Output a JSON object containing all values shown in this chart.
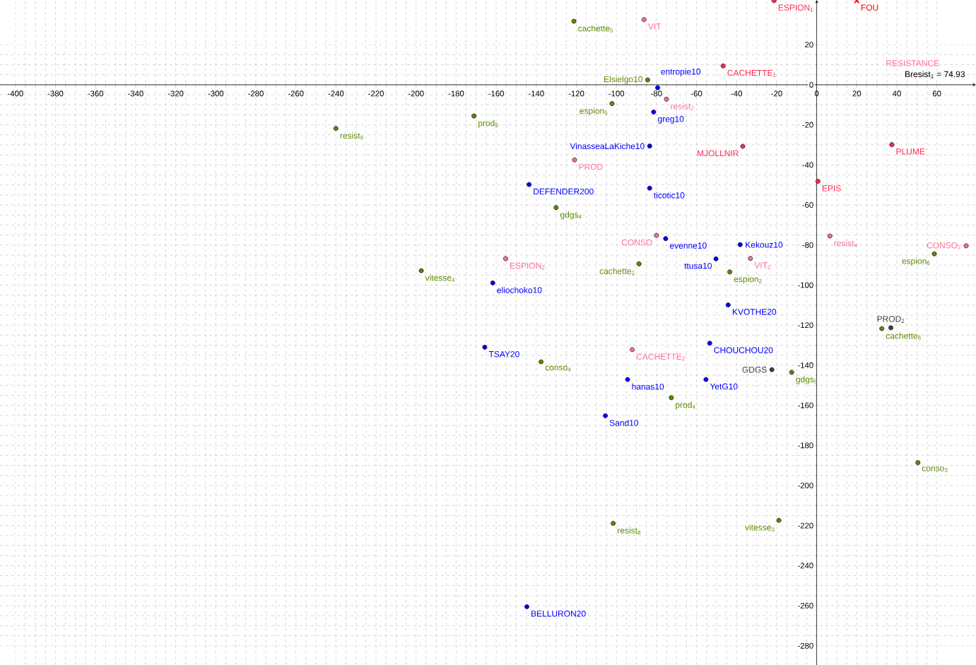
{
  "chart_data": {
    "type": "scatter",
    "marker": "circle",
    "grid": true,
    "xlim": [
      -407.7,
      79.5
    ],
    "ylim": [
      -289.6,
      42.3
    ],
    "xticks": [
      -400,
      -380,
      -360,
      -340,
      -320,
      -300,
      -280,
      -260,
      -240,
      -220,
      -200,
      -180,
      -160,
      -140,
      -120,
      -100,
      -80,
      -60,
      -40,
      -20,
      0,
      20,
      40,
      60
    ],
    "yticks": [
      -280,
      -260,
      -240,
      -220,
      -200,
      -180,
      -160,
      -140,
      -120,
      -100,
      -80,
      -60,
      -40,
      -20,
      0,
      20
    ],
    "series": [
      {
        "color": "#0000ff",
        "x": [
          -79.4,
          -81.4,
          -83.4,
          -143.6,
          -83.4,
          -75.4,
          -161.7,
          -165.7,
          -94.4,
          -105.5,
          -38.2,
          -50.3,
          -44.2,
          -53.4,
          -55.3,
          -144.7
        ],
        "values": [
          -1.5,
          -13.6,
          -30.6,
          -49.8,
          -51.6,
          -76.8,
          -98.9,
          -131.0,
          -147.1,
          -165.2,
          -79.8,
          -86.9,
          -109.9,
          -129.0,
          -147.1,
          -260.5
        ]
      },
      {
        "color": "#5c8a00",
        "x": [
          -121.2,
          -84.4,
          -102.2,
          -171.1,
          -240.0,
          -130.1,
          -88.7,
          -197.4,
          -137.6,
          -72.6,
          58.7,
          -43.4,
          32.5,
          -12.5,
          50.5,
          -101.6,
          -18.9
        ],
        "values": [
          31.7,
          2.4,
          -9.4,
          -15.6,
          -21.8,
          -61.3,
          -89.4,
          -92.8,
          -138.3,
          -156.2,
          -84.4,
          -93.4,
          -121.7,
          -143.5,
          -188.6,
          -218.9,
          -217.4
        ]
      },
      {
        "color": "#ff2a55",
        "x": [
          -21.3,
          -46.7,
          -36.9,
          37.5,
          0.6
        ],
        "values": [
          42.0,
          9.4,
          -30.7,
          -29.9,
          -48.2
        ]
      },
      {
        "color": "#ff6f91",
        "x": [
          -86.2,
          -75.0,
          -120.9,
          -80.0,
          -155.3,
          -92.1,
          6.6,
          74.6,
          -33.1
        ],
        "values": [
          32.5,
          -7.2,
          -37.5,
          -75.2,
          -86.8,
          -132.2,
          -75.5,
          -80.4,
          -86.7
        ]
      },
      {
        "color": "#404040",
        "x": [
          37.0,
          -22.4
        ],
        "values": [
          -121.3,
          -142.2
        ]
      },
      {
        "color": "#ff0000",
        "marker": "cross",
        "x": [
          20.0
        ],
        "values": [
          42.0
        ]
      }
    ],
    "annotations": [
      {
        "text": "entropie10",
        "x": -79.4,
        "y": -1.5
      },
      {
        "text": "greg10",
        "x": -81.4,
        "y": -13.6
      },
      {
        "text": "VinasseaLaKiche10",
        "x": -83.4,
        "y": -30.6
      },
      {
        "text": "DEFENDER200",
        "x": -143.6,
        "y": -49.8
      },
      {
        "text": "ticotic10",
        "x": -83.4,
        "y": -51.6
      },
      {
        "text": "evenne10",
        "x": -75.4,
        "y": -76.8
      },
      {
        "text": "eliochoko10",
        "x": -161.7,
        "y": -98.9
      },
      {
        "text": "TSAY20",
        "x": -165.7,
        "y": -131.0
      },
      {
        "text": "hanas10",
        "x": -94.4,
        "y": -147.1
      },
      {
        "text": "Sand10",
        "x": -105.5,
        "y": -165.2
      },
      {
        "text": "Kekouz10",
        "x": -38.2,
        "y": -79.8
      },
      {
        "text": "ttusa10",
        "x": -50.3,
        "y": -86.9
      },
      {
        "text": "KVOTHE20",
        "x": -44.2,
        "y": -109.9
      },
      {
        "text": "CHOUCHOU20",
        "x": -53.4,
        "y": -129.0
      },
      {
        "text": "YetG10",
        "x": -55.3,
        "y": -147.1
      },
      {
        "text": "BELLURON20",
        "x": -144.7,
        "y": -260.5
      },
      {
        "text": "cachette$_{5}$",
        "x": -121.2,
        "y": 31.7
      },
      {
        "text": "Elsielgo10",
        "x": -84.4,
        "y": 2.4
      },
      {
        "text": "espion$_{5}$",
        "x": -102.2,
        "y": -9.4
      },
      {
        "text": "prod$_{5}$",
        "x": -171.1,
        "y": -15.6
      },
      {
        "text": "resist$_{9}$",
        "x": -240.0,
        "y": -21.8
      },
      {
        "text": "gdgs$_{4}$",
        "x": -130.1,
        "y": -61.3
      },
      {
        "text": "cachette$_{2}$",
        "x": -88.7,
        "y": -89.4
      },
      {
        "text": "vitesse$_{4}$",
        "x": -197.4,
        "y": -92.8
      },
      {
        "text": "conso$_{4}$",
        "x": -137.6,
        "y": -138.3
      },
      {
        "text": "prod$_{4}$",
        "x": -72.6,
        "y": -156.2
      },
      {
        "text": "espion$_{6}$",
        "x": 58.7,
        "y": -84.4
      },
      {
        "text": "espion$_{2}$",
        "x": -43.4,
        "y": -93.4
      },
      {
        "text": "cachette$_{6}$",
        "x": 32.5,
        "y": -121.7
      },
      {
        "text": "gdgs$_{5}$",
        "x": -12.5,
        "y": -143.5
      },
      {
        "text": "conso$_{3}$",
        "x": 50.5,
        "y": -188.6
      },
      {
        "text": "resist$_{8}$",
        "x": -101.6,
        "y": -218.9
      },
      {
        "text": "vitesse$_{3}$",
        "x": -18.9,
        "y": -217.4
      },
      {
        "text": "ESPION$_{1}$",
        "x": -21.3,
        "y": 42.0
      },
      {
        "text": "CACHETTE$_{1}$",
        "x": -46.7,
        "y": 9.4
      },
      {
        "text": "MJOLLNIR",
        "x": -36.9,
        "y": -30.7
      },
      {
        "text": "PLUME",
        "x": 37.5,
        "y": -29.9
      },
      {
        "text": "EPIS",
        "x": 0.6,
        "y": -48.2
      },
      {
        "text": "VIT",
        "x": -86.2,
        "y": 32.5
      },
      {
        "text": "resist$_{2}$",
        "x": -75.0,
        "y": -7.2
      },
      {
        "text": "PROD",
        "x": -120.9,
        "y": -37.5
      },
      {
        "text": "CONSO",
        "x": -80.0,
        "y": -75.2
      },
      {
        "text": "ESPION$_{2}$",
        "x": -155.3,
        "y": -86.8
      },
      {
        "text": "CACHETTE$_{2}$",
        "x": -92.1,
        "y": -132.2
      },
      {
        "text": "resist$_{4}$",
        "x": 6.6,
        "y": -75.5
      },
      {
        "text": "CONSO$_{2}$",
        "x": 74.6,
        "y": -80.4
      },
      {
        "text": "VIT$_{2}$",
        "x": -33.1,
        "y": -86.7
      },
      {
        "text": "PROD$_{2}$",
        "x": 37.0,
        "y": -121.3
      },
      {
        "text": "GDGS",
        "x": -22.4,
        "y": -142.2
      },
      {
        "text": "FOU",
        "x": 20.0,
        "y": 42.0
      },
      "RESISTANCE",
      "Bresist$_{1}$ = 74.93"
    ]
  }
}
